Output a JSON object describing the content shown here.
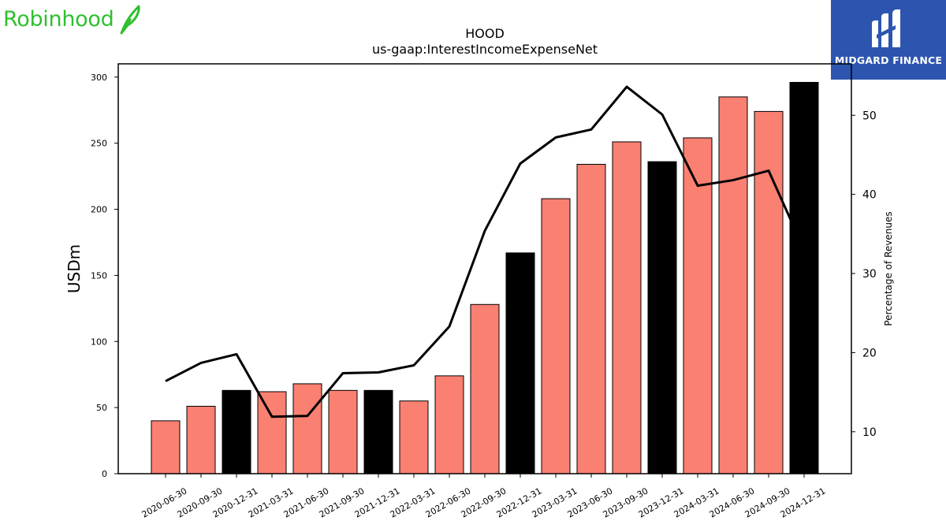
{
  "brand": {
    "left_name": "Robinhood",
    "left_icon": "feather-icon",
    "right_name": "MIDGARD FINANCE",
    "right_icon": "midgard-logo-icon"
  },
  "colors": {
    "bar": "#fa8072",
    "bar_highlight": "#000000",
    "line": "#000000",
    "brand_green": "#2fc02f",
    "brand_blue": "#2d55b0"
  },
  "chart_data": {
    "type": "bar",
    "title": "HOOD",
    "subtitle": "us-gaap:InterestIncomeExpenseNet",
    "ylabel": "USDm",
    "y2label": "Percentage of Revenues",
    "ylim": [
      0,
      310
    ],
    "y2lim": [
      4.7,
      56.5
    ],
    "yticks": [
      0,
      50,
      100,
      150,
      200,
      250,
      300
    ],
    "y2ticks": [
      10,
      20,
      30,
      40,
      50
    ],
    "grid": false,
    "categories": [
      "2020-06-30",
      "2020-09-30",
      "2020-12-31",
      "2021-03-31",
      "2021-06-30",
      "2021-09-30",
      "2021-12-31",
      "2022-03-31",
      "2022-06-30",
      "2022-09-30",
      "2022-12-31",
      "2023-03-31",
      "2023-06-30",
      "2023-09-30",
      "2023-12-31",
      "2024-03-31",
      "2024-06-30",
      "2024-09-30",
      "2024-12-31"
    ],
    "series": [
      {
        "axis": "left",
        "kind": "bar",
        "values": [
          40,
          51,
          63,
          62,
          68,
          63,
          63,
          55,
          74,
          128,
          167,
          208,
          234,
          251,
          236,
          254,
          285,
          274,
          296
        ],
        "highlight": [
          false,
          false,
          true,
          false,
          false,
          false,
          true,
          false,
          false,
          false,
          true,
          false,
          false,
          false,
          true,
          false,
          false,
          false,
          true
        ]
      },
      {
        "axis": "right",
        "kind": "line",
        "values": [
          16.4,
          18.7,
          19.8,
          11.9,
          12.0,
          17.4,
          17.5,
          18.4,
          23.3,
          35.4,
          43.9,
          47.2,
          48.2,
          53.6,
          50.1,
          41.1,
          41.8,
          43.0,
          33.0
        ]
      }
    ]
  }
}
